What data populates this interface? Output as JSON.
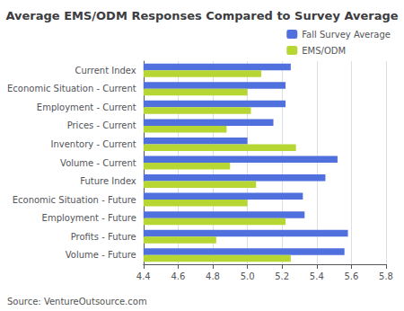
{
  "chart_data": {
    "type": "bar",
    "orientation": "horizontal",
    "title": "Average EMS/ODM Responses Compared to Survey Average",
    "annotation": "Source: VentureOutsource.com",
    "categories": [
      "Current Index",
      "Economic Situation - Current",
      "Employment - Current",
      "Prices - Current",
      "Inventory - Current",
      "Volume - Current",
      "Future Index",
      "Economic Situation - Future",
      "Employment - Future",
      "Profits - Future",
      "Volume - Future"
    ],
    "series": [
      {
        "name": "Fall Survey Average",
        "values": [
          5.25,
          5.22,
          5.22,
          5.15,
          5.0,
          5.52,
          5.45,
          5.32,
          5.33,
          5.58,
          5.56
        ]
      },
      {
        "name": "EMS/ODM",
        "values": [
          5.08,
          5.0,
          5.02,
          4.88,
          5.28,
          4.9,
          5.05,
          5.0,
          5.22,
          4.82,
          5.25
        ]
      }
    ],
    "xlim": [
      4.4,
      5.8
    ],
    "xticks": [
      4.4,
      4.6,
      4.8,
      {
        "value": 5.0,
        "label": "5.0"
      },
      5.2,
      5.4,
      5.6,
      5.8
    ],
    "grid": true,
    "legend": "upper right"
  }
}
